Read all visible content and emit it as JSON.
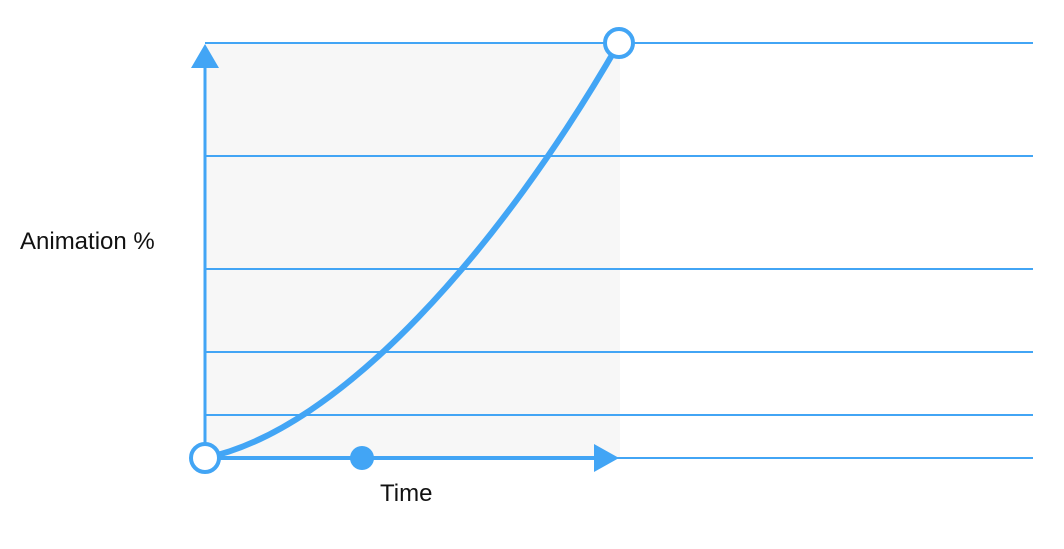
{
  "diagram": {
    "y_axis_label": "Animation %",
    "x_axis_label": "Time",
    "accent_color": "#42a5f5",
    "shaded_region_color": "#f7f7f7"
  }
}
